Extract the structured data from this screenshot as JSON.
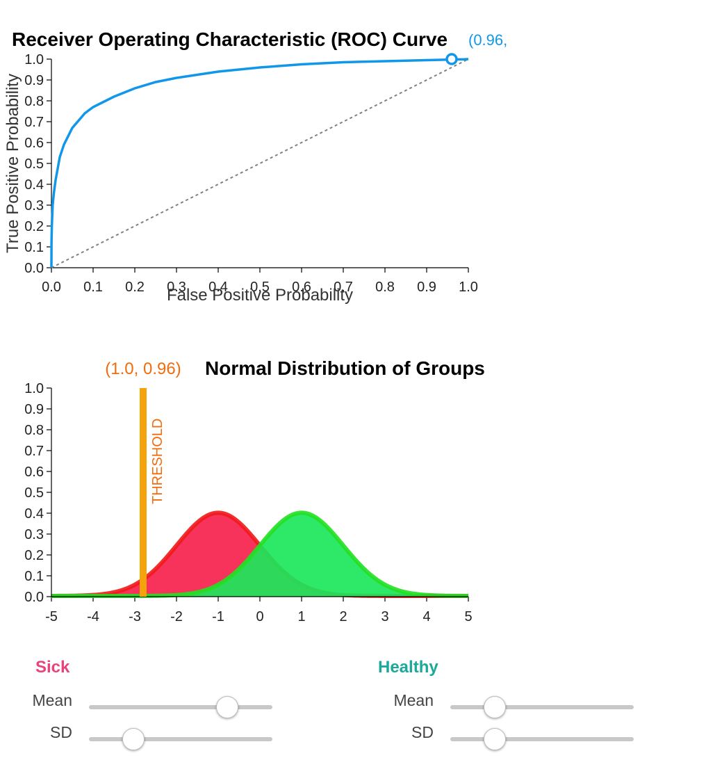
{
  "chart_data": [
    {
      "type": "line",
      "title": "Receiver Operating Characteristic (ROC) Curve",
      "xlabel": "False Positive Probability",
      "ylabel": "True Positive Probability",
      "xlim": [
        0,
        1
      ],
      "ylim": [
        0,
        1
      ],
      "xticks": [
        "0.0",
        "0.1",
        "0.2",
        "0.3",
        "0.4",
        "0.5",
        "0.6",
        "0.7",
        "0.8",
        "0.9",
        "1.0"
      ],
      "yticks": [
        "0.0",
        "0.1",
        "0.2",
        "0.3",
        "0.4",
        "0.5",
        "0.6",
        "0.7",
        "0.8",
        "0.9",
        "1.0"
      ],
      "series": [
        {
          "color": "#1197ea",
          "x": [
            0,
            0.0002,
            0.001,
            0.003,
            0.006,
            0.01,
            0.02,
            0.03,
            0.05,
            0.08,
            0.1,
            0.15,
            0.2,
            0.25,
            0.3,
            0.35,
            0.4,
            0.5,
            0.6,
            0.7,
            0.8,
            0.9,
            0.96,
            0.99,
            1.0
          ],
          "y": [
            0,
            0.12,
            0.2,
            0.3,
            0.36,
            0.42,
            0.53,
            0.59,
            0.67,
            0.74,
            0.77,
            0.82,
            0.86,
            0.89,
            0.91,
            0.925,
            0.94,
            0.96,
            0.975,
            0.985,
            0.99,
            0.995,
            0.998,
            0.999,
            1.0
          ]
        }
      ],
      "reference_line": {
        "x": [
          0,
          1
        ],
        "y": [
          0,
          1
        ],
        "color": "#808080",
        "style": "dashed"
      },
      "marker": {
        "x": 0.96,
        "y": 1.0,
        "label": "(0.96,",
        "color": "#1197ea"
      }
    },
    {
      "type": "area",
      "title": "Normal Distribution of Groups",
      "xlim": [
        -5,
        5
      ],
      "ylim": [
        0,
        1
      ],
      "xticks": [
        "-5",
        "-4",
        "-3",
        "-2",
        "-1",
        "0",
        "1",
        "2",
        "3",
        "4",
        "5"
      ],
      "yticks": [
        "0.0",
        "0.1",
        "0.2",
        "0.3",
        "0.4",
        "0.5",
        "0.6",
        "0.7",
        "0.8",
        "0.9",
        "1.0"
      ],
      "series": [
        {
          "mean": -1,
          "sd": 1,
          "fill": "#f7224d",
          "stroke": "#f01818"
        },
        {
          "mean": 1,
          "sd": 1,
          "fill": "#1ce65a",
          "stroke": "#22e022"
        }
      ],
      "threshold": {
        "x": -2.8,
        "label": "THRESHOLD",
        "annotation": "(1.0, 0.96)",
        "color": "#f5a30a",
        "text_color": "#f26b0c"
      }
    }
  ],
  "controls": {
    "sick": {
      "title": "Sick",
      "color": "#e8447a",
      "mean_label": "Mean",
      "sd_label": "SD",
      "mean_level": 0.75,
      "sd_level": 0.24
    },
    "healthy": {
      "title": "Healthy",
      "color": "#1aa99a",
      "mean_label": "Mean",
      "sd_label": "SD",
      "mean_level": 0.24,
      "sd_level": 0.24
    }
  }
}
